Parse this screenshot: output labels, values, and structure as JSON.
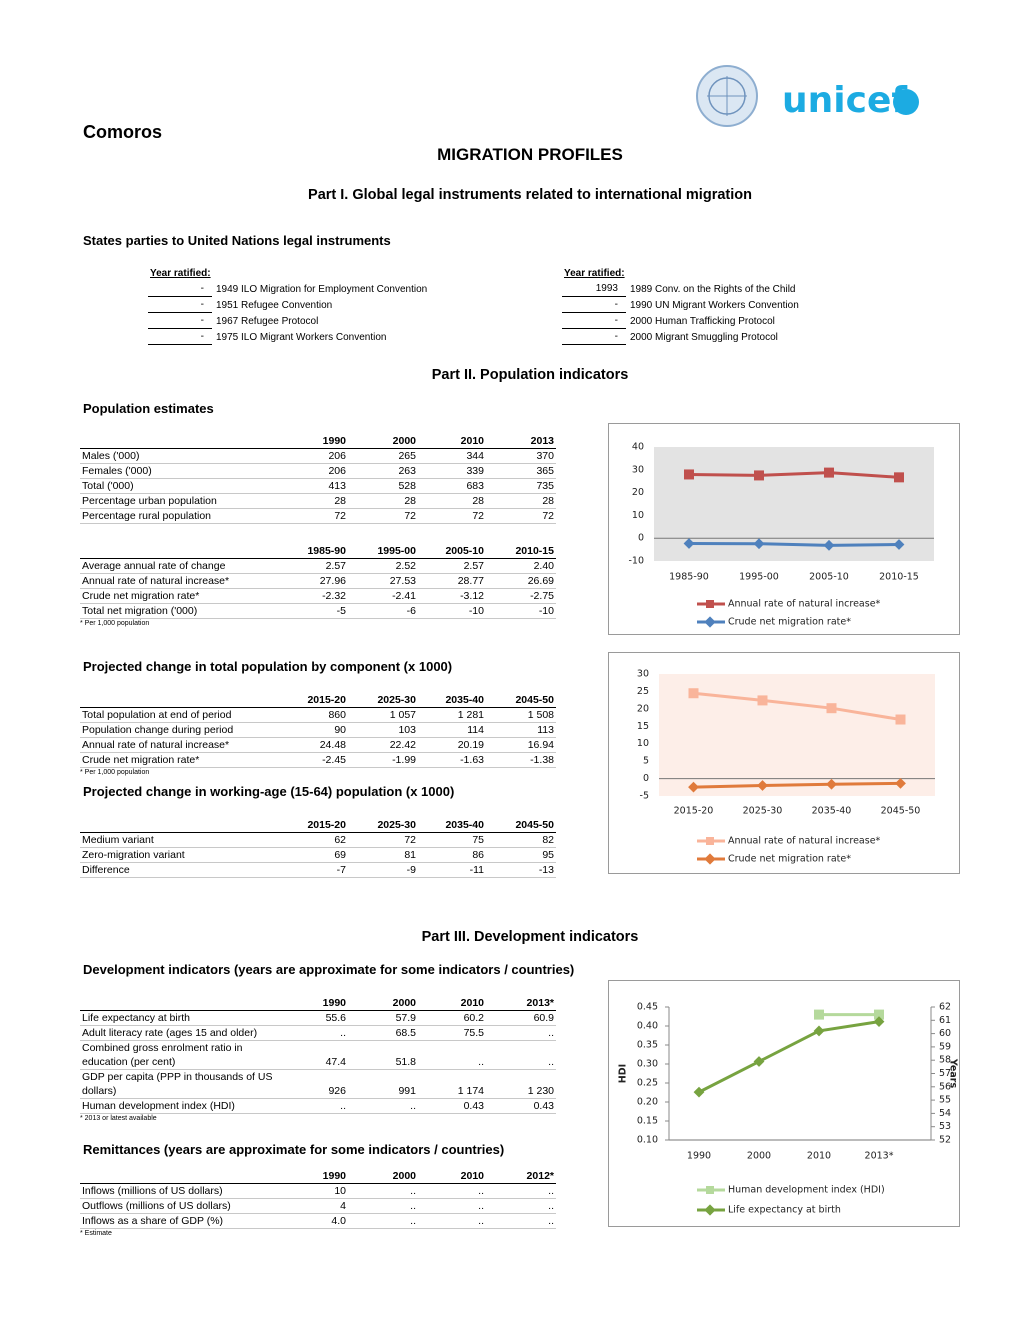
{
  "header": {
    "country": "Comoros",
    "title": "MIGRATION PROFILES",
    "logo_text": "unicef"
  },
  "part1": {
    "title": "Part I. Global legal instruments related to international migration",
    "subtitle": "States parties to United Nations legal instruments",
    "left": {
      "header": "Year ratified:",
      "rows": [
        [
          "-",
          "1949 ILO Migration for Employment Convention"
        ],
        [
          "-",
          "1951 Refugee Convention"
        ],
        [
          "-",
          "1967 Refugee Protocol"
        ],
        [
          "-",
          "1975 ILO Migrant Workers Convention"
        ]
      ]
    },
    "right": {
      "header": "Year ratified:",
      "rows": [
        [
          "1993",
          "1989 Conv. on the Rights of the Child"
        ],
        [
          "-",
          "1990 UN Migrant Workers Convention"
        ],
        [
          "-",
          "2000 Human Trafficking Protocol"
        ],
        [
          "-",
          "2000 Migrant Smuggling Protocol"
        ]
      ]
    }
  },
  "part2": {
    "title": "Part II. Population indicators",
    "pop_heading": "Population estimates",
    "table1": {
      "columns": [
        "1990",
        "2000",
        "2010",
        "2013"
      ],
      "rows": [
        [
          "Males ('000)",
          "206",
          "265",
          "344",
          "370"
        ],
        [
          "Females ('000)",
          "206",
          "263",
          "339",
          "365"
        ],
        [
          "Total ('000)",
          "413",
          "528",
          "683",
          "735"
        ],
        [
          "Percentage urban population",
          "28",
          "28",
          "28",
          "28"
        ],
        [
          "Percentage rural population",
          "72",
          "72",
          "72",
          "72"
        ]
      ]
    },
    "table2": {
      "columns": [
        "1985-90",
        "1995-00",
        "2005-10",
        "2010-15"
      ],
      "rows": [
        [
          "Average annual rate of change",
          "2.57",
          "2.52",
          "2.57",
          "2.40"
        ],
        [
          "Annual rate of natural increase*",
          "27.96",
          "27.53",
          "28.77",
          "26.69"
        ],
        [
          "Crude net migration rate*",
          "-2.32",
          "-2.41",
          "-3.12",
          "-2.75"
        ],
        [
          "Total net migration ('000)",
          "-5",
          "-6",
          "-10",
          "-10"
        ]
      ],
      "note": "* Per 1,000 population"
    },
    "proj_heading": "Projected change in total population by component (x 1000)",
    "table3": {
      "columns": [
        "2015-20",
        "2025-30",
        "2035-40",
        "2045-50"
      ],
      "rows": [
        [
          "Total population at end of period",
          "860",
          "1 057",
          "1 281",
          "1 508"
        ],
        [
          "Population change during period",
          "90",
          "103",
          "114",
          "113"
        ],
        [
          "Annual rate of natural increase*",
          "24.48",
          "22.42",
          "20.19",
          "16.94"
        ],
        [
          "Crude net migration rate*",
          "-2.45",
          "-1.99",
          "-1.63",
          "-1.38"
        ]
      ],
      "note": "* Per 1,000 population"
    },
    "work_heading": "Projected change in working-age (15-64) population (x 1000)",
    "table4": {
      "columns": [
        "2015-20",
        "2025-30",
        "2035-40",
        "2045-50"
      ],
      "rows": [
        [
          "Medium variant",
          "62",
          "72",
          "75",
          "82"
        ],
        [
          "Zero-migration variant",
          "69",
          "81",
          "86",
          "95"
        ],
        [
          "Difference",
          "-7",
          "-9",
          "-11",
          "-13"
        ]
      ]
    }
  },
  "part3": {
    "title": "Part III. Development indicators",
    "dev_heading": "Development indicators (years are approximate for some indicators / countries)",
    "table5": {
      "columns": [
        "1990",
        "2000",
        "2010",
        "2013*"
      ],
      "rows": [
        [
          "Life expectancy at birth",
          "55.6",
          "57.9",
          "60.2",
          "60.9"
        ],
        [
          "Adult literacy rate (ages 15 and older)",
          "..",
          "68.5",
          "75.5",
          ".."
        ],
        [
          "Combined gross enrolment ratio in education (per cent)",
          "47.4",
          "51.8",
          "..",
          ".."
        ],
        [
          "GDP per capita (PPP in thousands of US dollars)",
          "926",
          "991",
          "1 174",
          "1 230"
        ],
        [
          "Human development index (HDI)",
          "..",
          "..",
          "0.43",
          "0.43"
        ]
      ],
      "note": "* 2013 or latest available"
    },
    "remit_heading": "Remittances (years are approximate for some indicators / countries)",
    "table6": {
      "columns": [
        "1990",
        "2000",
        "2010",
        "2012*"
      ],
      "rows": [
        [
          "Inflows (millions of US dollars)",
          "10",
          "..",
          "..",
          ".."
        ],
        [
          "Outflows (millions of US dollars)",
          "4",
          "..",
          "..",
          ".."
        ],
        [
          "Inflows as a share of GDP (%)",
          "4.0",
          "..",
          "..",
          ".."
        ]
      ],
      "note": "* Estimate"
    }
  },
  "chart_data": [
    {
      "type": "line",
      "categories": [
        "1985-90",
        "1995-00",
        "2005-10",
        "2010-15"
      ],
      "series": [
        {
          "name": "Annual rate of natural increase*",
          "color": "#c0504d",
          "marker": "square",
          "values": [
            27.96,
            27.53,
            28.77,
            26.69
          ]
        },
        {
          "name": "Crude net migration rate*",
          "color": "#4f81bd",
          "marker": "diamond",
          "values": [
            -2.32,
            -2.41,
            -3.12,
            -2.75
          ]
        }
      ],
      "ylim": [
        -10,
        40
      ],
      "yticks": [
        -10,
        0,
        10,
        20,
        30,
        40
      ],
      "background": "#e3e3e3",
      "legend": "bottom"
    },
    {
      "type": "line",
      "categories": [
        "2015-20",
        "2025-30",
        "2035-40",
        "2045-50"
      ],
      "series": [
        {
          "name": "Annual rate of natural increase*",
          "color": "#f9b49a",
          "marker": "square",
          "values": [
            24.48,
            22.42,
            20.19,
            16.94
          ]
        },
        {
          "name": "Crude net migration rate*",
          "color": "#e07a3b",
          "marker": "diamond",
          "values": [
            -2.45,
            -1.99,
            -1.63,
            -1.38
          ]
        }
      ],
      "ylim": [
        -5,
        30
      ],
      "yticks": [
        -5,
        0,
        5,
        10,
        15,
        20,
        25,
        30
      ],
      "background": "#fdeee8",
      "legend": "bottom"
    },
    {
      "type": "line",
      "categories": [
        "1990",
        "2000",
        "2010",
        "2013*"
      ],
      "series": [
        {
          "name": "Human development index (HDI)",
          "color": "#b5d99c",
          "marker": "square",
          "values": [
            null,
            null,
            0.43,
            0.43
          ]
        },
        {
          "name": "Life expectancy at birth",
          "color": "#77a340",
          "marker": "diamond",
          "axis": "y2",
          "values": [
            55.6,
            57.9,
            60.2,
            60.9
          ]
        }
      ],
      "ylim": [
        0.1,
        0.45
      ],
      "yticks": [
        {
          "value": 0.1,
          "label": "0.10"
        },
        {
          "value": 0.15,
          "label": "0.15"
        },
        {
          "value": 0.2,
          "label": "0.20"
        },
        {
          "value": 0.25,
          "label": "0.25"
        },
        {
          "value": 0.3,
          "label": "0.30"
        },
        {
          "value": 0.35,
          "label": "0.35"
        },
        {
          "value": 0.4,
          "label": "0.40"
        },
        {
          "value": 0.45,
          "label": "0.45"
        }
      ],
      "y2lim": [
        52,
        62
      ],
      "y2ticks": [
        52,
        53,
        54,
        55,
        56,
        57,
        58,
        59,
        60,
        61,
        62
      ],
      "ylabel": "HDI",
      "y2label": "Years",
      "axis_lines": true,
      "legend": "bottom"
    }
  ]
}
